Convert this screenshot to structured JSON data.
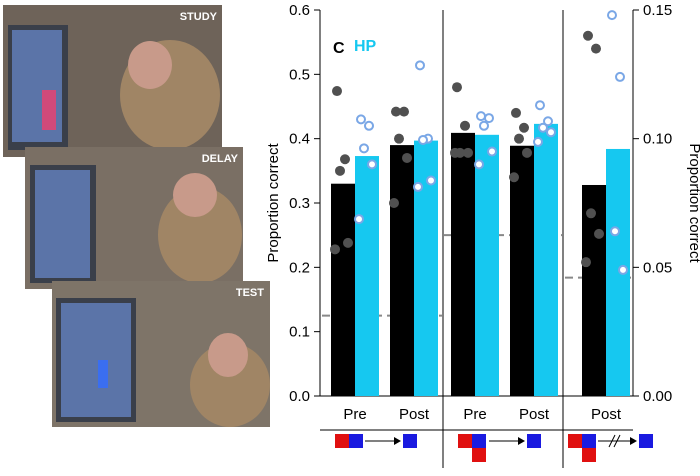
{
  "photos": {
    "labels": [
      "STUDY",
      "DELAY",
      "TEST"
    ]
  },
  "chart_data": {
    "type": "bar",
    "y_label": "Proportion correct",
    "y2_label": "Proportion correct",
    "ylim": [
      0,
      0.6
    ],
    "yticks": [
      {
        "value": 0,
        "label": "0.0"
      },
      0.1,
      0.2,
      0.3,
      0.4,
      0.5,
      0.6
    ],
    "y2lim": [
      0,
      0.15
    ],
    "y2ticks": [
      {
        "value": 0,
        "label": "0.00"
      },
      {
        "value": 0.05,
        "label": "0.05"
      },
      {
        "value": 0.1,
        "label": "0.10"
      },
      0.15
    ],
    "categories": [
      "Pre",
      "Post",
      "Pre",
      "Post",
      "Post"
    ],
    "category_axis": [
      "y",
      "y",
      "y",
      "y",
      "y2"
    ],
    "series": [
      {
        "name": "C",
        "color": "#000000",
        "point_color": "#505050",
        "values": [
          0.33,
          0.39,
          0.409,
          0.389,
          0.082
        ],
        "points": [
          [
            0.474,
            0.368,
            0.35,
            0.238,
            0.228
          ],
          [
            0.442,
            0.442,
            0.4,
            0.37,
            0.3
          ],
          [
            0.48,
            0.42,
            0.378,
            0.378,
            0.378
          ],
          [
            0.44,
            0.417,
            0.4,
            0.378,
            0.34
          ],
          [
            0.14,
            0.135,
            0.071,
            0.063,
            0.052
          ]
        ]
      },
      {
        "name": "HP",
        "color": "#16c8f0",
        "point_color": "#7aa7e6",
        "values": [
          0.373,
          0.397,
          0.406,
          0.423,
          0.096
        ],
        "points": [
          [
            0.43,
            0.42,
            0.385,
            0.36,
            0.275
          ],
          [
            0.514,
            0.4,
            0.398,
            0.335,
            0.325
          ],
          [
            0.435,
            0.432,
            0.42,
            0.38,
            0.36
          ],
          [
            0.452,
            0.427,
            0.417,
            0.41,
            0.395
          ],
          [
            0.148,
            0.124,
            0.064,
            0.049
          ]
        ]
      }
    ],
    "chance": [
      0.125,
      0.25,
      0.046
    ]
  }
}
